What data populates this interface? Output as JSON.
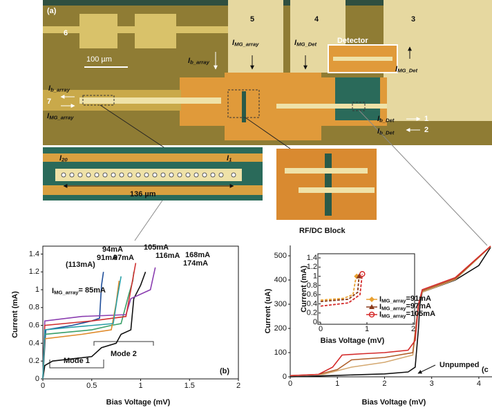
{
  "panel_a": {
    "label": "(a)",
    "pads": [
      "6",
      "5",
      "4",
      "3"
    ],
    "scale_bar": "100 µm",
    "detector": "Detector",
    "ports": [
      "7",
      "1",
      "2"
    ],
    "currents": [
      {
        "main": "I",
        "sub": "b_array"
      },
      {
        "main": "I",
        "sub": "MG_array"
      },
      {
        "main": "I",
        "sub": "MG_Det"
      },
      {
        "main": "I",
        "sub": "MG_Det"
      },
      {
        "main": "I",
        "sub": "b_array"
      },
      {
        "main": "I",
        "sub": "MG_array"
      },
      {
        "main": "I",
        "sub": "b_Det"
      },
      {
        "main": "I",
        "sub": "b_Det"
      }
    ],
    "array_inset": {
      "left": {
        "main": "I",
        "sub": "20"
      },
      "right": {
        "main": "I",
        "sub": "1"
      },
      "length": "136 µm"
    },
    "block_label": "RF/DC Block"
  },
  "chart_data": [
    {
      "type": "line",
      "xlabel": "Bias Voltage (mV)",
      "ylabel": "Current (mA)",
      "xlim": [
        0,
        2
      ],
      "ylim": [
        0,
        1.45
      ],
      "xticks": [
        0,
        0.5,
        1,
        1.5,
        2
      ],
      "yticks": [
        0,
        0.2,
        0.4,
        0.6,
        0.8,
        1,
        1.2,
        1.4
      ],
      "series": [
        {
          "color": "#111111",
          "x": [
            0,
            0.02,
            0.1,
            0.5,
            0.6,
            0.75,
            0.8,
            0.9,
            0.93,
            1.0,
            1.05
          ],
          "values": [
            0,
            0.15,
            0.2,
            0.25,
            0.35,
            0.4,
            0.5,
            0.55,
            0.9,
            1.05,
            1.2
          ]
        },
        {
          "color": "#1f4e9a",
          "x": [
            0,
            0.03,
            0.3,
            0.5,
            0.58,
            0.6,
            0.62
          ],
          "values": [
            0,
            0.55,
            0.6,
            0.65,
            0.68,
            1.05,
            1.2
          ]
        },
        {
          "color": "#3aa06a",
          "x": [
            0,
            0.02,
            0.5,
            0.7,
            0.8,
            0.88,
            0.92,
            0.93
          ],
          "values": [
            0,
            0.5,
            0.55,
            0.6,
            0.62,
            0.95,
            1.1,
            1.2
          ]
        },
        {
          "color": "#8a3db0",
          "x": [
            0,
            0.02,
            0.4,
            0.85,
            0.9,
            1.1,
            1.15
          ],
          "values": [
            0,
            0.65,
            0.7,
            0.72,
            0.9,
            1.0,
            1.25
          ]
        },
        {
          "color": "#e08a2a",
          "x": [
            0,
            0.02,
            0.4,
            0.7,
            0.75,
            0.78
          ],
          "values": [
            0,
            0.45,
            0.5,
            0.55,
            0.85,
            1.1
          ]
        },
        {
          "color": "#d03030",
          "x": [
            0,
            0.02,
            0.5,
            0.85,
            0.9,
            0.95
          ],
          "values": [
            0,
            0.6,
            0.65,
            0.7,
            1.0,
            1.3
          ]
        },
        {
          "color": "#2aa0a8",
          "x": [
            0,
            0.02,
            0.3,
            0.72,
            0.76,
            0.8
          ],
          "values": [
            0,
            0.55,
            0.58,
            0.62,
            0.9,
            1.15
          ]
        }
      ],
      "annotations": [
        "(113mA)",
        "91mA",
        "94mA",
        "97mA",
        "105mA",
        "116mA",
        "168mA",
        "174mA",
        {
          "main": "I",
          "sub": "MG_array",
          "rest": "= 85mA"
        },
        "Mode 1",
        "Mode 2",
        "(b)"
      ]
    },
    {
      "type": "line",
      "xlabel": "Bias Voltage (mV)",
      "ylabel": "Current (uA)",
      "xlim": [
        0,
        4.25
      ],
      "ylim": [
        0,
        540
      ],
      "xticks": [
        0,
        1,
        2,
        3,
        4
      ],
      "yticks": [
        0,
        100,
        200,
        300,
        400,
        500
      ],
      "series": [
        {
          "color": "#111111",
          "x": [
            0,
            0.5,
            1,
            2,
            2.5,
            2.65,
            2.72,
            2.75,
            2.8,
            3.5,
            4,
            4.25
          ],
          "values": [
            0,
            3,
            6,
            12,
            20,
            40,
            200,
            300,
            350,
            400,
            460,
            535
          ]
        },
        {
          "color": "#d4a870",
          "x": [
            0,
            0.7,
            1.3,
            2,
            2.6,
            2.72,
            2.8,
            3.5,
            4.25
          ],
          "values": [
            5,
            10,
            40,
            60,
            90,
            300,
            350,
            402,
            538
          ]
        },
        {
          "color": "#b0602a",
          "x": [
            0,
            0.6,
            1,
            1.3,
            2,
            2.6,
            2.72,
            2.8,
            3.5,
            4.25
          ],
          "values": [
            5,
            10,
            30,
            70,
            80,
            100,
            300,
            355,
            405,
            540
          ]
        },
        {
          "color": "#d42a2a",
          "x": [
            0,
            0.6,
            0.9,
            1.1,
            1.5,
            2,
            2.5,
            2.65,
            2.72,
            2.8,
            3.5,
            4.25
          ],
          "values": [
            5,
            10,
            40,
            90,
            95,
            100,
            110,
            150,
            300,
            360,
            410,
            540
          ]
        }
      ],
      "annotations": [
        "Unpumped",
        "(c"
      ]
    },
    {
      "type": "line",
      "xlabel": "Bias Voltage (mV)",
      "ylabel": "Current (mA)",
      "dashed": true,
      "xlim": [
        0,
        2
      ],
      "ylim": [
        0,
        1.4
      ],
      "xticks": [
        0,
        1,
        2
      ],
      "yticks": [
        0,
        0.2,
        0.4,
        0.6,
        0.8,
        1,
        1.2,
        1.4
      ],
      "series": [
        {
          "label": {
            "main": "I",
            "sub": "MG_array",
            "rest": "=91mA"
          },
          "color": "#e8a030",
          "marker": "diamond",
          "x": [
            0,
            0.5,
            0.7,
            0.75,
            0.78
          ],
          "values": [
            0.48,
            0.52,
            0.6,
            0.9,
            1.0
          ]
        },
        {
          "label": {
            "main": "I",
            "sub": "MG_array",
            "rest": "=97mA"
          },
          "color": "#8a3a1a",
          "marker": "triangle",
          "x": [
            0,
            0.6,
            0.8,
            0.83
          ],
          "values": [
            0.45,
            0.5,
            0.65,
            1.0
          ]
        },
        {
          "label": {
            "main": "I",
            "sub": "MG_array",
            "rest": "=105mA"
          },
          "color": "#d42a2a",
          "marker": "circle",
          "x": [
            0,
            0.6,
            0.85,
            0.9
          ],
          "values": [
            0.35,
            0.42,
            0.6,
            1.05
          ]
        }
      ]
    }
  ]
}
